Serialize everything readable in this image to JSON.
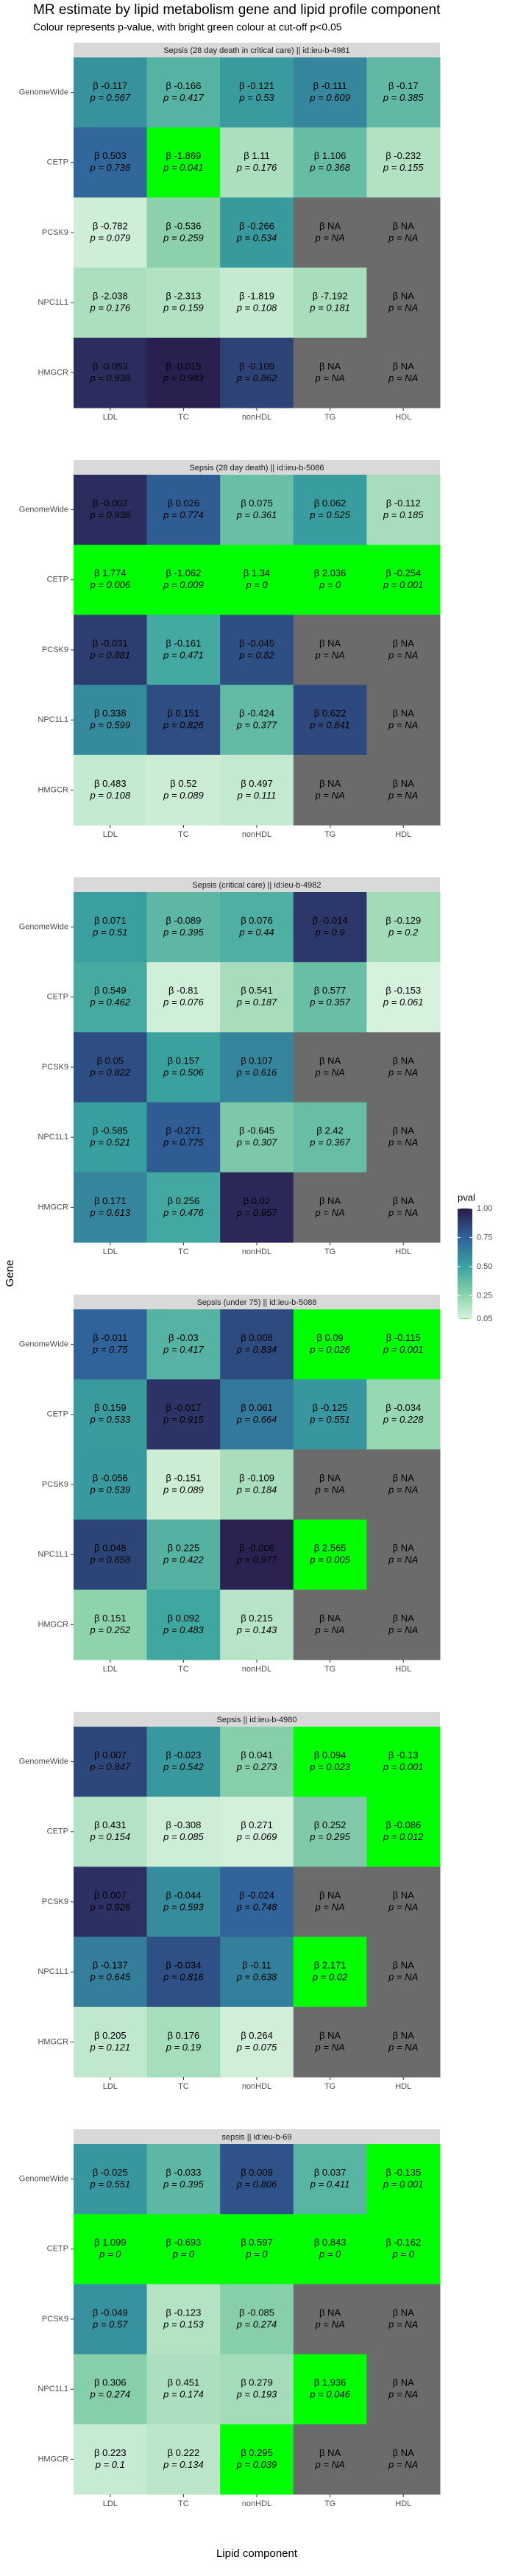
{
  "header": {
    "title": "MR estimate by lipid metabolism gene and lipid profile component",
    "subtitle": "Colour represents p-value, with bright green colour at cut-off p<0.05",
    "x_label": "Lipid component",
    "y_label": "Gene"
  },
  "legend": {
    "title": "pval",
    "lim": [
      0.05,
      1
    ],
    "ticks": [
      {
        "value": 1,
        "label": "1.00"
      },
      0.75,
      {
        "value": 0.5,
        "label": "0.50"
      },
      0.25,
      0.05
    ],
    "stops": [
      {
        "value": 0.05,
        "color": "#00ff00"
      },
      {
        "value": 0.056,
        "color": "#d8f2dd"
      },
      {
        "value": 0.25,
        "color": "#8fd3ab"
      },
      {
        "value": 0.5,
        "color": "#3aa39f"
      },
      {
        "value": 0.75,
        "color": "#30639a"
      },
      {
        "value": 1,
        "color": "#2a1b4a"
      }
    ],
    "na_color": "#6b6b6b"
  },
  "chart_data": [
    {
      "type": "heatmap",
      "title": "Sepsis (28 day death in critical care) || id:ieu-b-4981",
      "x": [
        "LDL",
        "TC",
        "nonHDL",
        "TG",
        "HDL"
      ],
      "y": [
        "GenomeWide",
        "CETP",
        "PCSK9",
        "NPC1L1",
        "HMGCR"
      ],
      "values": [
        [
          -0.117,
          -0.166,
          -0.121,
          -0.111,
          -0.17
        ],
        [
          0.503,
          -1.869,
          1.11,
          1.106,
          -0.232
        ],
        [
          -0.782,
          -0.536,
          -0.266,
          null,
          null
        ],
        [
          -2.038,
          -2.313,
          -1.819,
          -7.192,
          null
        ],
        [
          -0.053,
          -0.015,
          -0.109,
          null,
          null
        ]
      ],
      "value_labels": [
        [
          "β -0.117",
          "β -0.166",
          "β -0.121",
          "β -0.111",
          "β -0.17"
        ],
        [
          "β 0.503",
          "β -1.869",
          "β 1.11",
          "β 1.106",
          "β -0.232"
        ],
        [
          "β -0.782",
          "β -0.536",
          "β -0.266",
          "β NA",
          "β NA"
        ],
        [
          "β -2.038",
          "β -2.313",
          "β -1.819",
          "β -7.192",
          "β NA"
        ],
        [
          "β -0.053",
          "β -0.015",
          "β -0.109",
          "β NA",
          "β NA"
        ]
      ],
      "pvals": [
        [
          0.567,
          0.417,
          0.53,
          0.609,
          0.385
        ],
        [
          0.736,
          0.041,
          0.176,
          0.368,
          0.155
        ],
        [
          0.079,
          0.259,
          0.534,
          null,
          null
        ],
        [
          0.176,
          0.159,
          0.108,
          0.181,
          null
        ],
        [
          0.938,
          0.983,
          0.862,
          null,
          null
        ]
      ],
      "pval_labels": [
        [
          "p = 0.567",
          "p = 0.417",
          "p = 0.53",
          "p = 0.609",
          "p = 0.385"
        ],
        [
          "p = 0.736",
          "p = 0.041",
          "p = 0.176",
          "p = 0.368",
          "p = 0.155"
        ],
        [
          "p = 0.079",
          "p = 0.259",
          "p = 0.534",
          "p = NA",
          "p = NA"
        ],
        [
          "p = 0.176",
          "p = 0.159",
          "p = 0.108",
          "p = 0.181",
          "p = NA"
        ],
        [
          "p = 0.938",
          "p = 0.983",
          "p = 0.862",
          "p = NA",
          "p = NA"
        ]
      ]
    },
    {
      "type": "heatmap",
      "title": "Sepsis (28 day death) || id:ieu-b-5086",
      "x": [
        "LDL",
        "TC",
        "nonHDL",
        "TG",
        "HDL"
      ],
      "y": [
        "GenomeWide",
        "CETP",
        "PCSK9",
        "NPC1L1",
        "HMGCR"
      ],
      "values": [
        [
          -0.007,
          0.026,
          0.075,
          0.062,
          -0.112
        ],
        [
          1.774,
          -1.062,
          1.34,
          2.036,
          -0.254
        ],
        [
          -0.031,
          -0.161,
          -0.045,
          null,
          null
        ],
        [
          0.338,
          0.151,
          -0.424,
          0.622,
          null
        ],
        [
          0.483,
          0.52,
          0.497,
          null,
          null
        ]
      ],
      "value_labels": [
        [
          "β -0.007",
          "β 0.026",
          "β 0.075",
          "β 0.062",
          "β -0.112"
        ],
        [
          "β 1.774",
          "β -1.062",
          "β 1.34",
          "β 2.036",
          "β -0.254"
        ],
        [
          "β -0.031",
          "β -0.161",
          "β -0.045",
          "β NA",
          "β NA"
        ],
        [
          "β 0.338",
          "β 0.151",
          "β -0.424",
          "β 0.622",
          "β NA"
        ],
        [
          "β 0.483",
          "β 0.52",
          "β 0.497",
          "β NA",
          "β NA"
        ]
      ],
      "pvals": [
        [
          0.938,
          0.774,
          0.361,
          0.525,
          0.185
        ],
        [
          0.006,
          0.009,
          0,
          0,
          0.001
        ],
        [
          0.881,
          0.471,
          0.82,
          null,
          null
        ],
        [
          0.599,
          0.826,
          0.377,
          0.841,
          null
        ],
        [
          0.108,
          0.089,
          0.111,
          null,
          null
        ]
      ],
      "pval_labels": [
        [
          "p = 0.938",
          "p = 0.774",
          "p = 0.361",
          "p = 0.525",
          "p = 0.185"
        ],
        [
          "p = 0.006",
          "p = 0.009",
          "p = 0",
          "p = 0",
          "p = 0.001"
        ],
        [
          "p = 0.881",
          "p = 0.471",
          "p = 0.82",
          "p = NA",
          "p = NA"
        ],
        [
          "p = 0.599",
          "p = 0.826",
          "p = 0.377",
          "p = 0.841",
          "p = NA"
        ],
        [
          "p = 0.108",
          "p = 0.089",
          "p = 0.111",
          "p = NA",
          "p = NA"
        ]
      ]
    },
    {
      "type": "heatmap",
      "title": "Sepsis (critical care) || id:ieu-b-4982",
      "x": [
        "LDL",
        "TC",
        "nonHDL",
        "TG",
        "HDL"
      ],
      "y": [
        "GenomeWide",
        "CETP",
        "PCSK9",
        "NPC1L1",
        "HMGCR"
      ],
      "values": [
        [
          0.071,
          -0.089,
          0.076,
          -0.014,
          -0.129
        ],
        [
          0.549,
          -0.81,
          0.541,
          0.577,
          -0.153
        ],
        [
          0.05,
          0.157,
          0.107,
          null,
          null
        ],
        [
          -0.585,
          -0.271,
          -0.645,
          2.42,
          null
        ],
        [
          0.171,
          0.256,
          0.02,
          null,
          null
        ]
      ],
      "value_labels": [
        [
          "β 0.071",
          "β -0.089",
          "β 0.076",
          "β -0.014",
          "β -0.129"
        ],
        [
          "β 0.549",
          "β -0.81",
          "β 0.541",
          "β 0.577",
          "β -0.153"
        ],
        [
          "β 0.05",
          "β 0.157",
          "β 0.107",
          "β NA",
          "β NA"
        ],
        [
          "β -0.585",
          "β -0.271",
          "β -0.645",
          "β 2.42",
          "β NA"
        ],
        [
          "β 0.171",
          "β 0.256",
          "β 0.02",
          "β NA",
          "β NA"
        ]
      ],
      "pvals": [
        [
          0.51,
          0.395,
          0.44,
          0.9,
          0.2
        ],
        [
          0.462,
          0.076,
          0.187,
          0.357,
          0.061
        ],
        [
          0.822,
          0.506,
          0.616,
          null,
          null
        ],
        [
          0.521,
          0.775,
          0.307,
          0.367,
          null
        ],
        [
          0.613,
          0.476,
          0.957,
          null,
          null
        ]
      ],
      "pval_labels": [
        [
          "p = 0.51",
          "p = 0.395",
          "p = 0.44",
          "p = 0.9",
          "p = 0.2"
        ],
        [
          "p = 0.462",
          "p = 0.076",
          "p = 0.187",
          "p = 0.357",
          "p = 0.061"
        ],
        [
          "p = 0.822",
          "p = 0.506",
          "p = 0.616",
          "p = NA",
          "p = NA"
        ],
        [
          "p = 0.521",
          "p = 0.775",
          "p = 0.307",
          "p = 0.367",
          "p = NA"
        ],
        [
          "p = 0.613",
          "p = 0.476",
          "p = 0.957",
          "p = NA",
          "p = NA"
        ]
      ]
    },
    {
      "type": "heatmap",
      "title": "Sepsis (under 75) || id:ieu-b-5088",
      "x": [
        "LDL",
        "TC",
        "nonHDL",
        "TG",
        "HDL"
      ],
      "y": [
        "GenomeWide",
        "CETP",
        "PCSK9",
        "NPC1L1",
        "HMGCR"
      ],
      "values": [
        [
          -0.011,
          -0.03,
          0.008,
          0.09,
          -0.115
        ],
        [
          0.159,
          -0.017,
          0.061,
          -0.125,
          -0.034
        ],
        [
          -0.056,
          -0.151,
          -0.109,
          null,
          null
        ],
        [
          0.048,
          0.225,
          -0.006,
          2.565,
          null
        ],
        [
          0.151,
          0.092,
          0.215,
          null,
          null
        ]
      ],
      "value_labels": [
        [
          "β -0.011",
          "β -0.03",
          "β 0.008",
          "β 0.09",
          "β -0.115"
        ],
        [
          "β 0.159",
          "β -0.017",
          "β 0.061",
          "β -0.125",
          "β -0.034"
        ],
        [
          "β -0.056",
          "β -0.151",
          "β -0.109",
          "β NA",
          "β NA"
        ],
        [
          "β 0.048",
          "β 0.225",
          "β -0.006",
          "β 2.565",
          "β NA"
        ],
        [
          "β 0.151",
          "β 0.092",
          "β 0.215",
          "β NA",
          "β NA"
        ]
      ],
      "pvals": [
        [
          0.75,
          0.417,
          0.834,
          0.026,
          0.001
        ],
        [
          0.533,
          0.915,
          0.664,
          0.551,
          0.228
        ],
        [
          0.539,
          0.089,
          0.184,
          null,
          null
        ],
        [
          0.858,
          0.422,
          0.977,
          0.005,
          null
        ],
        [
          0.252,
          0.483,
          0.143,
          null,
          null
        ]
      ],
      "pval_labels": [
        [
          "p = 0.75",
          "p = 0.417",
          "p = 0.834",
          "p = 0.026",
          "p = 0.001"
        ],
        [
          "p = 0.533",
          "p = 0.915",
          "p = 0.664",
          "p = 0.551",
          "p = 0.228"
        ],
        [
          "p = 0.539",
          "p = 0.089",
          "p = 0.184",
          "p = NA",
          "p = NA"
        ],
        [
          "p = 0.858",
          "p = 0.422",
          "p = 0.977",
          "p = 0.005",
          "p = NA"
        ],
        [
          "p = 0.252",
          "p = 0.483",
          "p = 0.143",
          "p = NA",
          "p = NA"
        ]
      ]
    },
    {
      "type": "heatmap",
      "title": "Sepsis || id:ieu-b-4980",
      "x": [
        "LDL",
        "TC",
        "nonHDL",
        "TG",
        "HDL"
      ],
      "y": [
        "GenomeWide",
        "CETP",
        "PCSK9",
        "NPC1L1",
        "HMGCR"
      ],
      "values": [
        [
          0.007,
          -0.023,
          0.041,
          0.094,
          -0.13
        ],
        [
          0.431,
          -0.308,
          0.271,
          0.252,
          -0.086
        ],
        [
          0.007,
          -0.044,
          -0.024,
          null,
          null
        ],
        [
          -0.137,
          -0.034,
          -0.11,
          2.171,
          null
        ],
        [
          0.205,
          0.176,
          0.264,
          null,
          null
        ]
      ],
      "value_labels": [
        [
          "β 0.007",
          "β -0.023",
          "β 0.041",
          "β 0.094",
          "β -0.13"
        ],
        [
          "β 0.431",
          "β -0.308",
          "β 0.271",
          "β 0.252",
          "β -0.086"
        ],
        [
          "β 0.007",
          "β -0.044",
          "β -0.024",
          "β NA",
          "β NA"
        ],
        [
          "β -0.137",
          "β -0.034",
          "β -0.11",
          "β 2.171",
          "β NA"
        ],
        [
          "β 0.205",
          "β 0.176",
          "β 0.264",
          "β NA",
          "β NA"
        ]
      ],
      "pvals": [
        [
          0.847,
          0.542,
          0.273,
          0.023,
          0.001
        ],
        [
          0.154,
          0.085,
          0.069,
          0.295,
          0.012
        ],
        [
          0.926,
          0.593,
          0.748,
          null,
          null
        ],
        [
          0.645,
          0.816,
          0.638,
          0.02,
          null
        ],
        [
          0.121,
          0.19,
          0.075,
          null,
          null
        ]
      ],
      "pval_labels": [
        [
          "p = 0.847",
          "p = 0.542",
          "p = 0.273",
          "p = 0.023",
          "p = 0.001"
        ],
        [
          "p = 0.154",
          "p = 0.085",
          "p = 0.069",
          "p = 0.295",
          "p = 0.012"
        ],
        [
          "p = 0.926",
          "p = 0.593",
          "p = 0.748",
          "p = NA",
          "p = NA"
        ],
        [
          "p = 0.645",
          "p = 0.816",
          "p = 0.638",
          "p = 0.02",
          "p = NA"
        ],
        [
          "p = 0.121",
          "p = 0.19",
          "p = 0.075",
          "p = NA",
          "p = NA"
        ]
      ]
    },
    {
      "type": "heatmap",
      "title": "sepsis || id:ieu-b-69",
      "x": [
        "LDL",
        "TC",
        "nonHDL",
        "TG",
        "HDL"
      ],
      "y": [
        "GenomeWide",
        "CETP",
        "PCSK9",
        "NPC1L1",
        "HMGCR"
      ],
      "values": [
        [
          -0.025,
          -0.033,
          0.009,
          0.037,
          -0.135
        ],
        [
          1.099,
          -0.693,
          0.597,
          0.843,
          -0.162
        ],
        [
          -0.049,
          -0.123,
          -0.085,
          null,
          null
        ],
        [
          0.306,
          0.451,
          0.279,
          1.936,
          null
        ],
        [
          0.223,
          0.222,
          0.295,
          null,
          null
        ]
      ],
      "value_labels": [
        [
          "β -0.025",
          "β -0.033",
          "β 0.009",
          "β 0.037",
          "β -0.135"
        ],
        [
          "β 1.099",
          "β -0.693",
          "β 0.597",
          "β 0.843",
          "β -0.162"
        ],
        [
          "β -0.049",
          "β -0.123",
          "β -0.085",
          "β NA",
          "β NA"
        ],
        [
          "β 0.306",
          "β 0.451",
          "β 0.279",
          "β 1.936",
          "β NA"
        ],
        [
          "β 0.223",
          "β 0.222",
          "β 0.295",
          "β NA",
          "β NA"
        ]
      ],
      "pvals": [
        [
          0.551,
          0.395,
          0.806,
          0.411,
          0.001
        ],
        [
          0,
          0,
          0,
          0,
          0
        ],
        [
          0.57,
          0.153,
          0.274,
          null,
          null
        ],
        [
          0.274,
          0.174,
          0.193,
          0.046,
          null
        ],
        [
          0.1,
          0.134,
          0.039,
          null,
          null
        ]
      ],
      "pval_labels": [
        [
          "p = 0.551",
          "p = 0.395",
          "p = 0.806",
          "p = 0.411",
          "p = 0.001"
        ],
        [
          "p = 0",
          "p = 0",
          "p = 0",
          "p = 0",
          "p = 0"
        ],
        [
          "p = 0.57",
          "p = 0.153",
          "p = 0.274",
          "p = NA",
          "p = NA"
        ],
        [
          "p = 0.274",
          "p = 0.174",
          "p = 0.193",
          "p = 0.046",
          "p = NA"
        ],
        [
          "p = 0.1",
          "p = 0.134",
          "p = 0.039",
          "p = NA",
          "p = NA"
        ]
      ]
    }
  ]
}
